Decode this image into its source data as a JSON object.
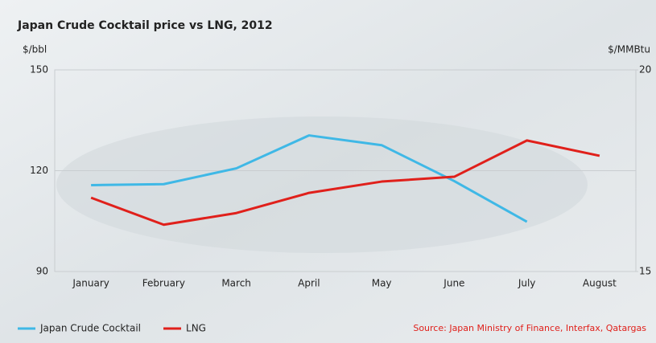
{
  "chart_data": {
    "type": "line",
    "title": "Japan Crude Cocktail price vs LNG, 2012",
    "y_label": "$/bbl",
    "y2_label": "$/MMBtu",
    "categories": [
      "January",
      "February",
      "March",
      "April",
      "May",
      "June",
      "July",
      "August"
    ],
    "series": [
      {
        "name": "Japan Crude Cocktail",
        "color": "#3fb8e6",
        "values": [
          115.7,
          116,
          120.7,
          130.5,
          127.6,
          116.9,
          104.8,
          null
        ]
      },
      {
        "name": "LNG",
        "color": "#e0201b",
        "axis": "y2",
        "values": [
          16.83,
          16.16,
          16.45,
          16.95,
          17.23,
          17.35,
          18.25,
          17.87
        ]
      }
    ],
    "ylim": [
      90,
      150
    ],
    "yticks": [
      90,
      120,
      150
    ],
    "y2lim": [
      15,
      20
    ],
    "y2ticks": [
      15,
      20
    ],
    "grid": true,
    "legend": "bottom-left",
    "source": "Source: Japan Ministry of Finance, Interfax, Qatargas"
  }
}
